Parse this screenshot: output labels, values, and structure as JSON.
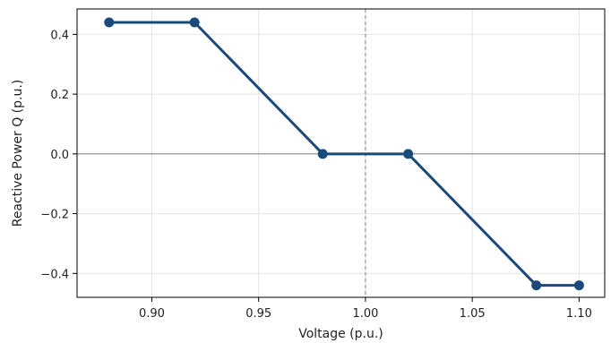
{
  "chart_data": {
    "type": "line",
    "title": "",
    "xlabel": "Voltage (p.u.)",
    "ylabel": "Reactive Power Q (p.u.)",
    "xlim": [
      0.865,
      1.112
    ],
    "ylim": [
      -0.48,
      0.485
    ],
    "xticks": [
      0.9,
      0.95,
      1.0,
      1.05,
      1.1
    ],
    "xtick_labels": [
      "0.90",
      "0.95",
      "1.00",
      "1.05",
      "1.10"
    ],
    "yticks": [
      -0.4,
      -0.2,
      0.0,
      0.2,
      0.4
    ],
    "ytick_labels": [
      "−0.4",
      "−0.2",
      "0.0",
      "0.2",
      "0.4"
    ],
    "grid": true,
    "reference_lines": {
      "horizontal_y": 0.0,
      "vertical_x": 1.0
    },
    "series": [
      {
        "color": "#1a4a7a",
        "marker": "circle",
        "x": [
          0.88,
          0.92,
          0.98,
          1.02,
          1.08,
          1.1
        ],
        "y": [
          0.44,
          0.44,
          0.0,
          0.0,
          -0.44,
          -0.44
        ]
      }
    ]
  }
}
